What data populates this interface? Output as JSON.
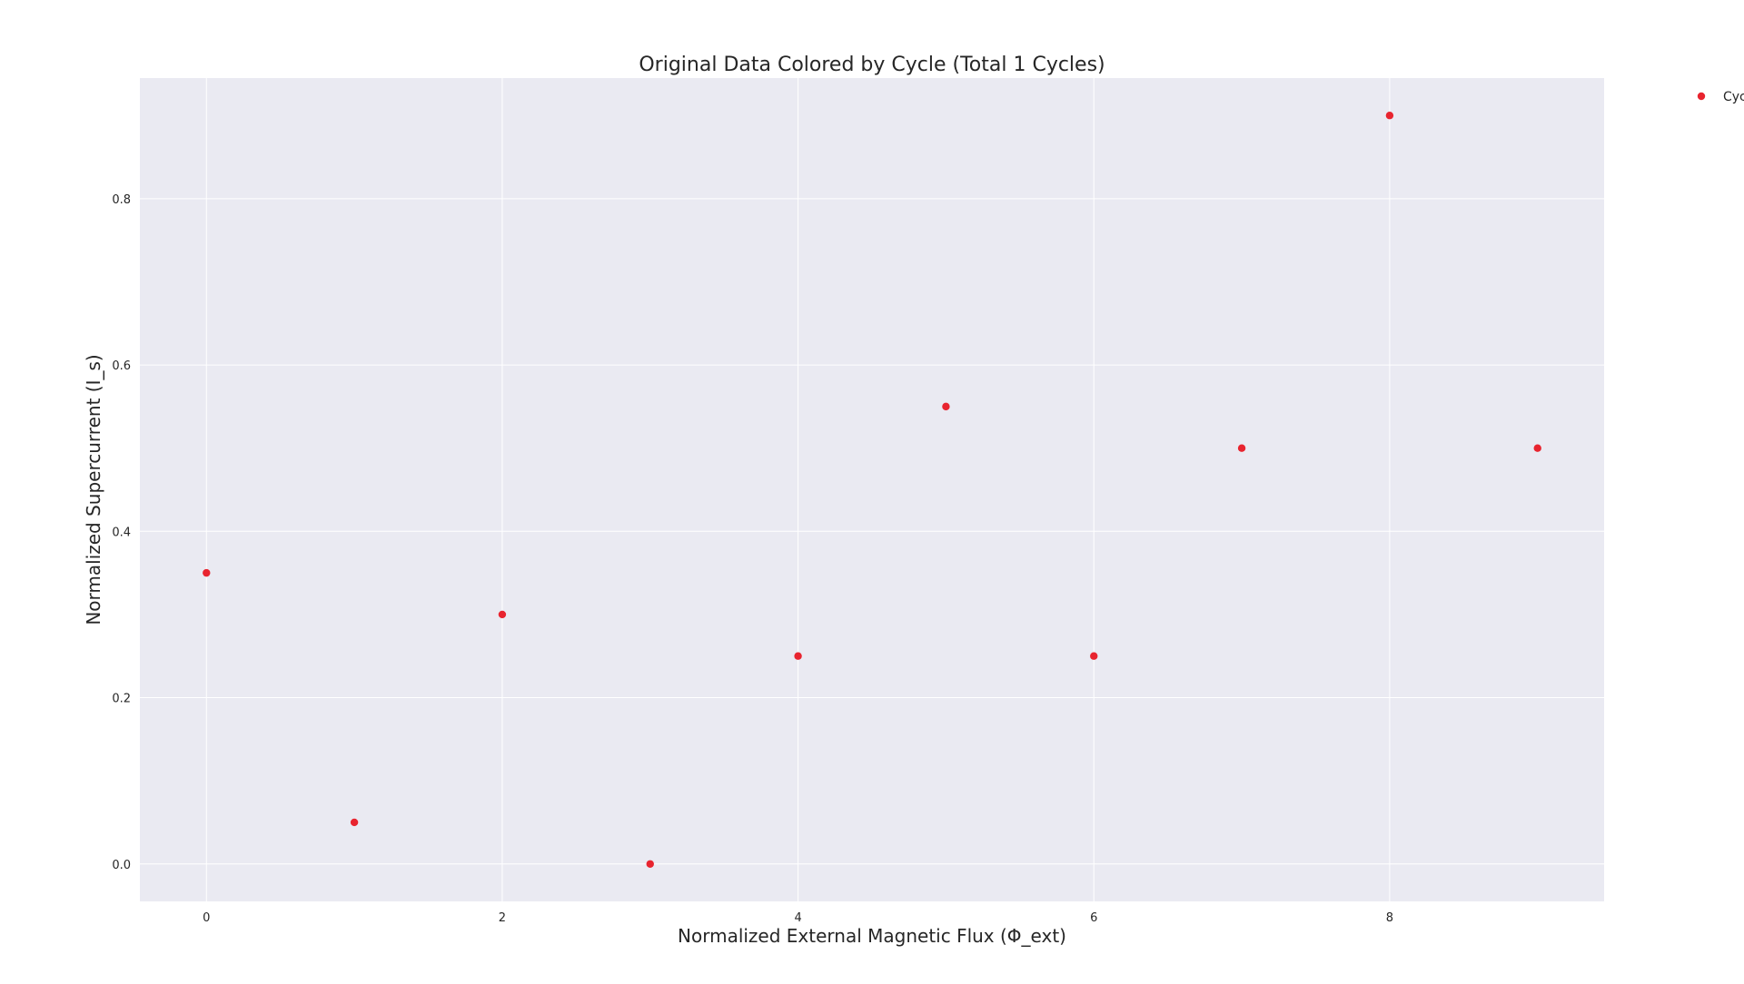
{
  "chart_data": {
    "type": "scatter",
    "title": "Original Data Colored by Cycle (Total 1 Cycles)",
    "xlabel": "Normalized External Magnetic Flux (Φ_ext)",
    "ylabel": "Normalized Supercurrent (I_s)",
    "xlim": [
      -0.45,
      9.45
    ],
    "ylim": [
      -0.045,
      0.945
    ],
    "xticks": [
      0,
      2,
      4,
      6,
      8
    ],
    "xtick_labels": [
      "0",
      "2",
      "4",
      "6",
      "8"
    ],
    "yticks": [
      0.0,
      0.2,
      0.4,
      0.6,
      0.8
    ],
    "ytick_labels": [
      "0.0",
      "0.2",
      "0.4",
      "0.6",
      "0.8"
    ],
    "grid": true,
    "legend_position": "outside-top-right",
    "series": [
      {
        "name": "Cyc",
        "color": "#e8242f",
        "x": [
          0,
          1,
          2,
          3,
          4,
          5,
          6,
          7,
          8,
          9
        ],
        "y": [
          0.35,
          0.05,
          0.3,
          0.0,
          0.25,
          0.55,
          0.25,
          0.5,
          0.9,
          0.5
        ]
      }
    ],
    "background_color": "#eaeaf2",
    "grid_color": "#ffffff"
  }
}
